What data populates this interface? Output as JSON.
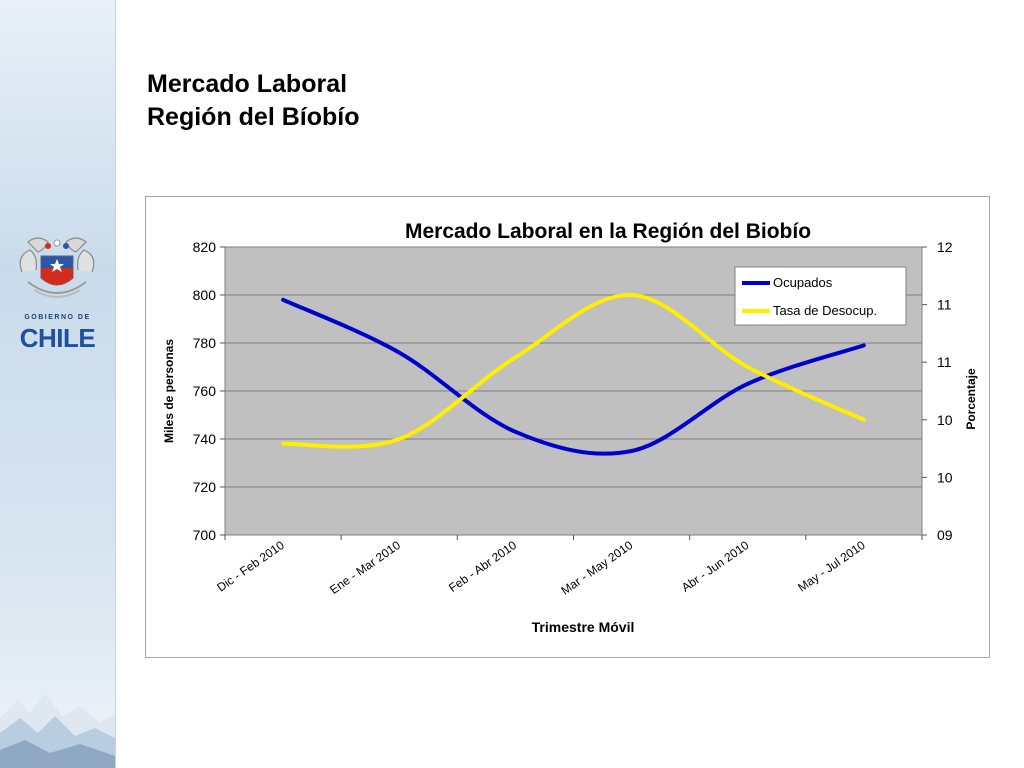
{
  "slide": {
    "title_line1": "Mercado Laboral",
    "title_line2": "Región del Bíobío"
  },
  "logo": {
    "crest_icon": "chile-coat-of-arms-icon",
    "gov_text": "GOBIERNO DE",
    "country_text": "CHILE"
  },
  "colors": {
    "ocupados": "#0000cc",
    "desocup": "#ffee00",
    "plot_bg": "#c0c0c0",
    "grid": "#7f7f7f"
  },
  "chart_data": {
    "type": "line",
    "title": "Mercado Laboral en la Región del Biobío",
    "xlabel": "Trimestre Móvil",
    "ylabel": "Miles de personas",
    "y2label": "Porcentaje",
    "categories": [
      "Dic - Feb 2010",
      "Ene - Mar 2010",
      "Feb - Abr 2010",
      "Mar - May 2010",
      "Abr - Jun 2010",
      "May - Jul 2010"
    ],
    "ylim": [
      700,
      820
    ],
    "yticks": [
      "700",
      "720",
      "740",
      "760",
      "780",
      "800",
      "820"
    ],
    "y2lim": [
      9,
      12
    ],
    "y2ticks": [
      "09",
      "10",
      "10",
      "11",
      "11",
      "12"
    ],
    "grid": true,
    "legend_position": "top-right",
    "series": [
      {
        "name": "Ocupados",
        "axis": "left",
        "values": [
          798,
          776,
          743,
          735,
          763,
          779
        ]
      },
      {
        "name": "Tasa de Desocup.",
        "axis": "right",
        "values": [
          9.95,
          10.0,
          10.85,
          11.5,
          10.75,
          10.2
        ]
      }
    ]
  }
}
